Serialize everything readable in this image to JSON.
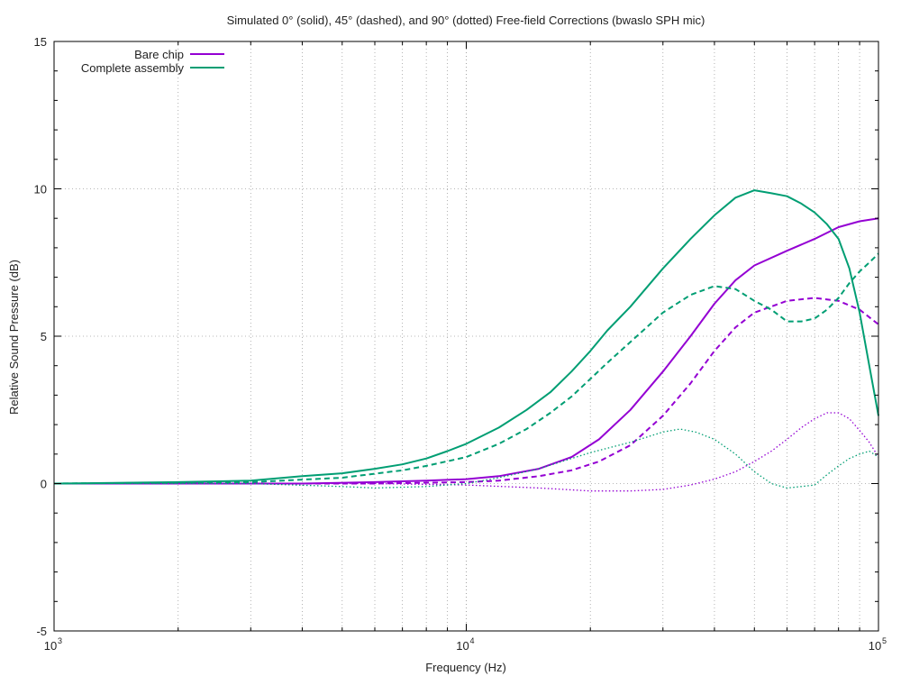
{
  "chart_data": {
    "type": "line",
    "title": "Simulated 0° (solid), 45° (dashed), and 90° (dotted) Free-field Corrections (bwaslo SPH mic)",
    "xlabel": "Frequency (Hz)",
    "ylabel": "Relative Sound Pressure (dB)",
    "xscale": "log",
    "xlim": [
      1000,
      100000
    ],
    "ylim": [
      -5,
      15
    ],
    "y_ticks": [
      -5,
      0,
      5,
      10,
      15
    ],
    "x_ticks": [
      {
        "value": 1000,
        "base": "10",
        "exp": "3"
      },
      {
        "value": 10000,
        "base": "10",
        "exp": "4"
      },
      {
        "value": 100000,
        "base": "10",
        "exp": "5"
      }
    ],
    "grid": true,
    "legend_position": "top-left",
    "legend": [
      {
        "name": "Bare chip",
        "color": "#9400d3"
      },
      {
        "name": "Complete assembly",
        "color": "#009e73"
      }
    ],
    "series": [
      {
        "group": "Bare chip",
        "angle": "0",
        "style": "solid",
        "color": "#9400d3",
        "x": [
          1000,
          2000,
          4000,
          6000,
          8000,
          10000,
          12000,
          15000,
          18000,
          21000,
          25000,
          30000,
          35000,
          40000,
          45000,
          50000,
          60000,
          70000,
          80000,
          90000,
          100000
        ],
        "y": [
          0,
          0,
          0,
          0.05,
          0.1,
          0.15,
          0.25,
          0.5,
          0.9,
          1.5,
          2.5,
          3.8,
          5.0,
          6.1,
          6.9,
          7.4,
          7.9,
          8.3,
          8.7,
          8.9,
          9.0
        ]
      },
      {
        "group": "Bare chip",
        "angle": "45",
        "style": "dashed",
        "color": "#9400d3",
        "x": [
          1000,
          3000,
          6000,
          10000,
          12000,
          15000,
          18000,
          21000,
          25000,
          30000,
          35000,
          40000,
          45000,
          50000,
          60000,
          70000,
          80000,
          90000,
          100000
        ],
        "y": [
          0,
          0,
          0,
          0.05,
          0.1,
          0.25,
          0.45,
          0.75,
          1.3,
          2.3,
          3.4,
          4.5,
          5.3,
          5.8,
          6.2,
          6.3,
          6.2,
          5.9,
          5.4
        ]
      },
      {
        "group": "Bare chip",
        "angle": "90",
        "style": "dotted",
        "color": "#9400d3",
        "x": [
          1000,
          3000,
          6000,
          10000,
          15000,
          20000,
          25000,
          30000,
          35000,
          40000,
          45000,
          50000,
          55000,
          60000,
          65000,
          70000,
          75000,
          80000,
          85000,
          90000,
          95000,
          100000
        ],
        "y": [
          0,
          0,
          0,
          -0.05,
          -0.15,
          -0.25,
          -0.25,
          -0.2,
          -0.05,
          0.15,
          0.4,
          0.75,
          1.1,
          1.5,
          1.9,
          2.2,
          2.4,
          2.4,
          2.2,
          1.8,
          1.4,
          0.9
        ]
      },
      {
        "group": "Complete assembly",
        "angle": "0",
        "style": "solid",
        "color": "#009e73",
        "x": [
          1000,
          2000,
          3000,
          4000,
          5000,
          6000,
          7000,
          8000,
          9000,
          10000,
          12000,
          14000,
          16000,
          18000,
          20000,
          22000,
          25000,
          30000,
          35000,
          40000,
          45000,
          50000,
          55000,
          60000,
          65000,
          70000,
          75000,
          80000,
          85000,
          90000,
          95000,
          100000
        ],
        "y": [
          0,
          0.05,
          0.1,
          0.25,
          0.35,
          0.5,
          0.65,
          0.85,
          1.1,
          1.35,
          1.9,
          2.5,
          3.1,
          3.8,
          4.5,
          5.2,
          6.0,
          7.3,
          8.3,
          9.1,
          9.7,
          9.95,
          9.85,
          9.75,
          9.5,
          9.2,
          8.8,
          8.3,
          7.3,
          5.8,
          4.0,
          2.3
        ]
      },
      {
        "group": "Complete assembly",
        "angle": "45",
        "style": "dashed",
        "color": "#009e73",
        "x": [
          1000,
          3000,
          5000,
          7000,
          8000,
          10000,
          12000,
          14000,
          16000,
          18000,
          20000,
          22000,
          25000,
          30000,
          35000,
          40000,
          45000,
          50000,
          55000,
          60000,
          65000,
          70000,
          75000,
          80000,
          85000,
          90000,
          95000,
          100000
        ],
        "y": [
          0,
          0.05,
          0.2,
          0.45,
          0.6,
          0.9,
          1.35,
          1.85,
          2.4,
          2.95,
          3.55,
          4.1,
          4.8,
          5.8,
          6.4,
          6.7,
          6.6,
          6.2,
          5.9,
          5.5,
          5.5,
          5.6,
          5.9,
          6.3,
          6.8,
          7.2,
          7.5,
          7.8
        ]
      },
      {
        "group": "Complete assembly",
        "angle": "90",
        "style": "dotted",
        "color": "#009e73",
        "x": [
          1000,
          3000,
          5000,
          6000,
          8000,
          10000,
          12000,
          15000,
          18000,
          20000,
          25000,
          30000,
          33000,
          36000,
          40000,
          45000,
          50000,
          55000,
          60000,
          65000,
          70000,
          75000,
          80000,
          85000,
          90000,
          95000,
          100000
        ],
        "y": [
          0,
          0,
          -0.1,
          -0.15,
          -0.1,
          0,
          0.2,
          0.5,
          0.85,
          1.05,
          1.4,
          1.75,
          1.85,
          1.75,
          1.5,
          1.0,
          0.4,
          0.0,
          -0.15,
          -0.1,
          -0.05,
          0.3,
          0.6,
          0.85,
          1.0,
          1.1,
          0.9
        ]
      }
    ]
  }
}
